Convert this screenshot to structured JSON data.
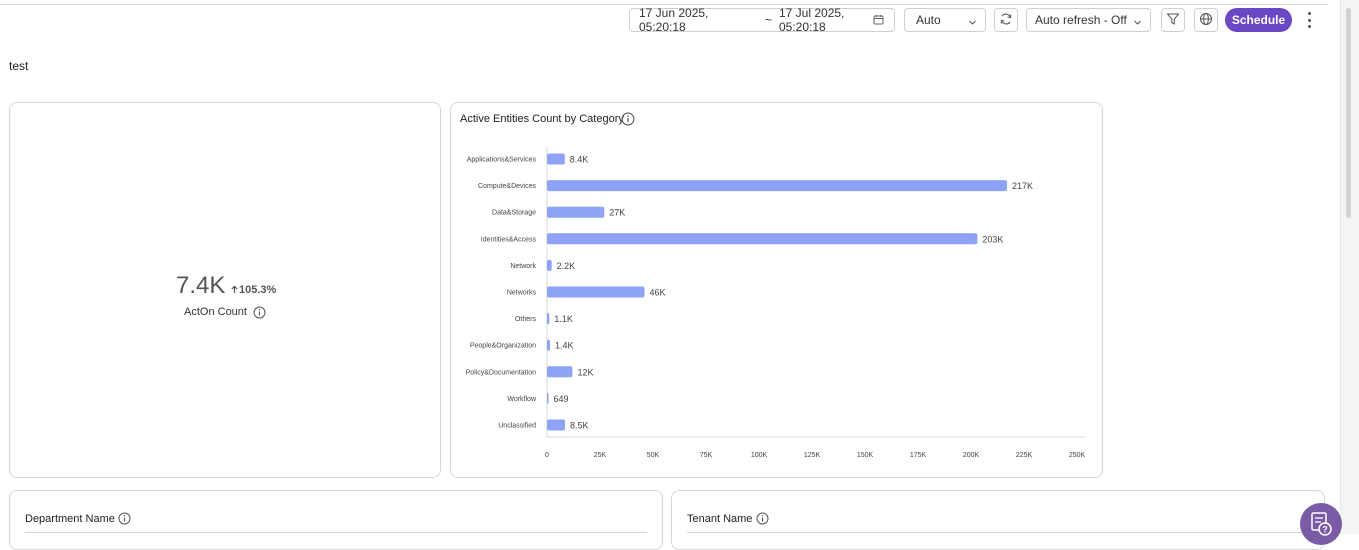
{
  "toolbar": {
    "date_start": "17 Jun 2025, 05:20:18",
    "date_separator": "~",
    "date_end": "17 Jul 2025, 05:20:18",
    "interval": "Auto",
    "auto_refresh": "Auto refresh - Off",
    "schedule_label": "Schedule",
    "icons": [
      "calendar-icon",
      "chevron-down-icon",
      "refresh-icon",
      "filter-icon",
      "globe-icon",
      "more-vertical-icon"
    ]
  },
  "page": {
    "title": "test"
  },
  "kpi": {
    "value": "7.4K",
    "change": "105.3%",
    "change_direction": "up",
    "label": "ActOn Count"
  },
  "charts": {
    "active_entities": {
      "title": "Active Entities Count by Category"
    }
  },
  "chart_data": {
    "type": "bar",
    "orientation": "horizontal",
    "title": "Active Entities Count by Category",
    "categories": [
      "Applications&Services",
      "Compute&Devices",
      "Data&Storage",
      "Identities&Access",
      "Network",
      "Networks",
      "Others",
      "People&Organization",
      "Policy&Documentation",
      "Workflow",
      "Unclassified"
    ],
    "values": [
      8400,
      217000,
      27000,
      203000,
      2200,
      46000,
      1100,
      1400,
      12000,
      649,
      8500
    ],
    "value_labels": [
      "8.4K",
      "217K",
      "27K",
      "203K",
      "2.2K",
      "46K",
      "1.1K",
      "1.4K",
      "12K",
      "649",
      "8.5K"
    ],
    "xlim": [
      0,
      250000
    ],
    "ticks": [
      0,
      25000,
      50000,
      75000,
      100000,
      125000,
      150000,
      175000,
      200000,
      225000,
      250000
    ],
    "tick_labels": [
      "0",
      "25K",
      "50K",
      "75K",
      "100K",
      "125K",
      "150K",
      "175K",
      "200K",
      "225K",
      "250K"
    ],
    "bar_color": "#8ea2f6",
    "grid": false
  },
  "bottom_cards": {
    "department": "Department Name",
    "tenant": "Tenant Name"
  },
  "colors": {
    "accent": "#6a47c4",
    "bar": "#8ea2f6",
    "help_fab": "#7b5aa6"
  }
}
